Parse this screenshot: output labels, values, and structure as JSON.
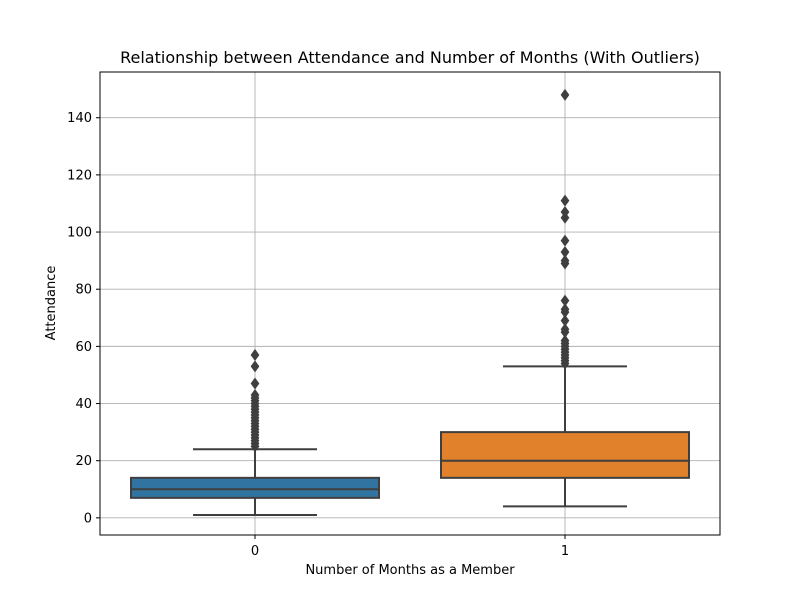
{
  "chart_data": {
    "type": "box",
    "title": "Relationship between Attendance and Number of Months (With Outliers)",
    "xlabel": "Number of Months as a Member",
    "ylabel": "Attendance",
    "categories": [
      "0",
      "1"
    ],
    "ylim": [
      -6,
      156
    ],
    "yticks": [
      0,
      20,
      40,
      60,
      80,
      100,
      120,
      140
    ],
    "ytick_labels": [
      "0",
      "20",
      "40",
      "60",
      "80",
      "100",
      "120",
      "140"
    ],
    "grid": true,
    "boxes": [
      {
        "category": "0",
        "color": "#3274a1",
        "whisker_low": 1,
        "q1": 7,
        "median": 10,
        "q3": 14,
        "whisker_high": 24,
        "outliers": [
          25,
          26,
          27,
          28,
          29,
          30,
          31,
          32,
          33,
          34,
          35,
          36,
          37,
          38,
          39,
          40,
          41,
          42,
          43,
          47,
          53,
          57
        ]
      },
      {
        "category": "1",
        "color": "#e1812c",
        "whisker_low": 4,
        "q1": 14,
        "median": 20,
        "q3": 30,
        "whisker_high": 53,
        "outliers": [
          54,
          55,
          56,
          57,
          58,
          59,
          60,
          61,
          62,
          65,
          66,
          69,
          72,
          73,
          76,
          89,
          90,
          93,
          97,
          105,
          107,
          111,
          148
        ]
      }
    ]
  }
}
